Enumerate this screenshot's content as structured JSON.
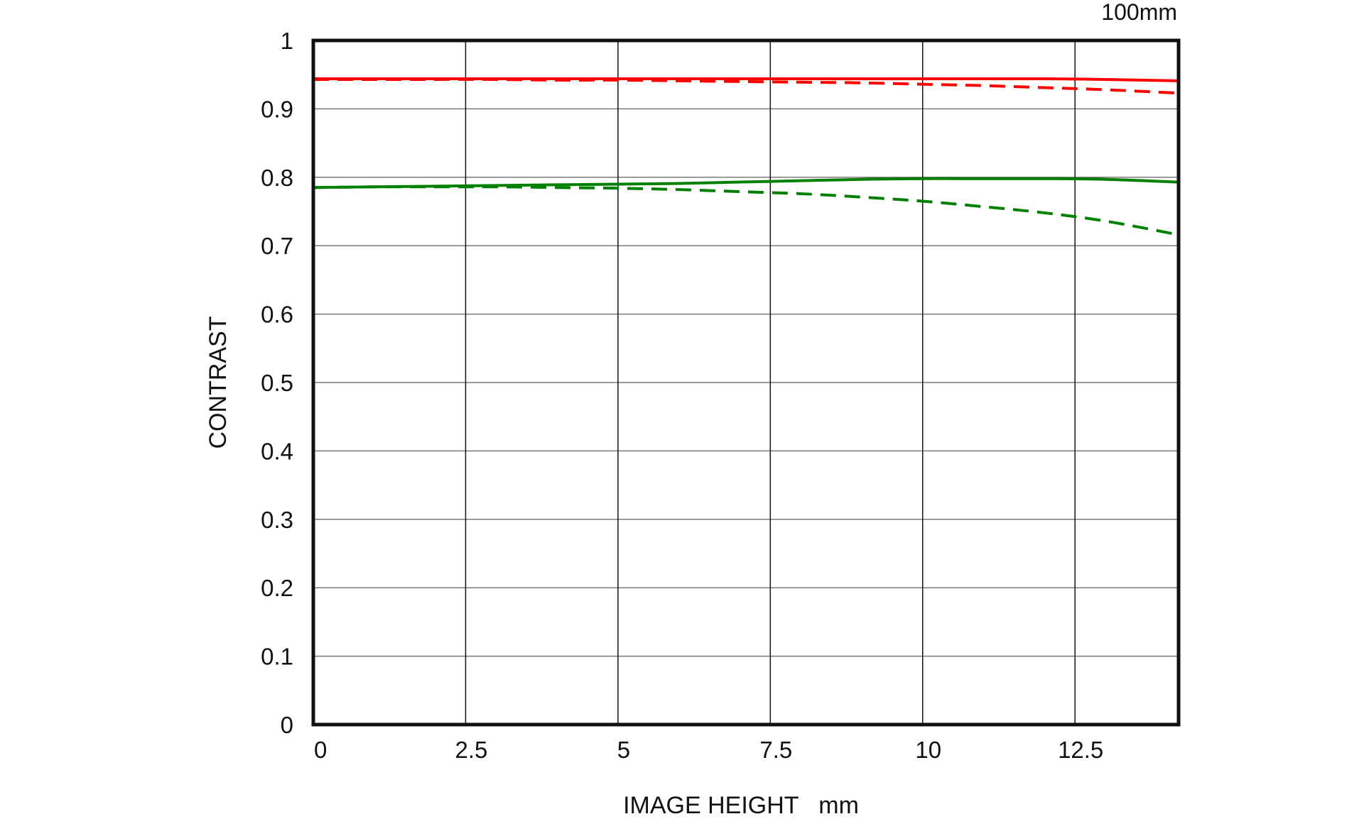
{
  "chart_data": {
    "type": "line",
    "title": "100mm",
    "xlabel": "IMAGE HEIGHT   mm",
    "ylabel": "CONTRAST",
    "xlim": [
      0,
      14.2
    ],
    "ylim": [
      0,
      1
    ],
    "xticks": [
      0,
      2.5,
      5,
      7.5,
      10,
      12.5
    ],
    "xtick_labels": [
      "0",
      "2.5",
      "5",
      "7.5",
      "10",
      "12.5"
    ],
    "yticks": [
      0,
      0.1,
      0.2,
      0.3,
      0.4,
      0.5,
      0.6,
      0.7,
      0.8,
      0.9,
      1
    ],
    "ytick_labels": [
      "0",
      "0.1",
      "0.2",
      "0.3",
      "0.4",
      "0.5",
      "0.6",
      "0.7",
      "0.8",
      "0.9",
      "1"
    ],
    "grid": true,
    "legend": "none",
    "x": [
      0,
      1,
      2,
      3,
      4,
      5,
      6,
      7,
      8,
      9,
      10,
      11,
      12,
      13,
      14.2
    ],
    "series": [
      {
        "color": "#ff0000",
        "style": "solid",
        "values": [
          0.944,
          0.944,
          0.944,
          0.944,
          0.944,
          0.944,
          0.944,
          0.944,
          0.944,
          0.944,
          0.944,
          0.944,
          0.944,
          0.943,
          0.941
        ]
      },
      {
        "color": "#ff0000",
        "style": "dashed",
        "values": [
          0.943,
          0.943,
          0.943,
          0.943,
          0.942,
          0.942,
          0.941,
          0.94,
          0.939,
          0.938,
          0.936,
          0.934,
          0.931,
          0.928,
          0.923
        ]
      },
      {
        "color": "#008000",
        "style": "solid",
        "values": [
          0.785,
          0.786,
          0.787,
          0.788,
          0.789,
          0.79,
          0.791,
          0.793,
          0.795,
          0.797,
          0.798,
          0.798,
          0.798,
          0.797,
          0.793
        ]
      },
      {
        "color": "#008000",
        "style": "dashed",
        "values": [
          0.785,
          0.786,
          0.786,
          0.786,
          0.785,
          0.784,
          0.782,
          0.779,
          0.776,
          0.771,
          0.765,
          0.757,
          0.748,
          0.736,
          0.716
        ]
      }
    ]
  }
}
